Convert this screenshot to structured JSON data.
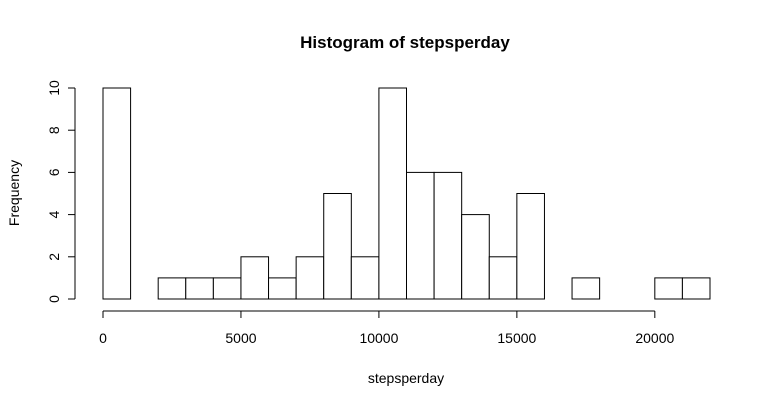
{
  "chart_data": {
    "type": "bar",
    "title": "Histogram of stepsperday",
    "xlabel": "stepsperday",
    "ylabel": "Frequency",
    "bin_width": 1000,
    "bin_starts": [
      0,
      1000,
      2000,
      3000,
      4000,
      5000,
      6000,
      7000,
      8000,
      9000,
      10000,
      11000,
      12000,
      13000,
      14000,
      15000,
      16000,
      17000,
      18000,
      19000,
      20000,
      21000
    ],
    "values": [
      10,
      0,
      1,
      1,
      1,
      2,
      1,
      2,
      5,
      2,
      10,
      6,
      6,
      4,
      2,
      5,
      0,
      1,
      0,
      0,
      1,
      1
    ],
    "xlim": [
      0,
      22000
    ],
    "ylim": [
      0,
      10
    ],
    "x_ticks": [
      0,
      5000,
      10000,
      15000,
      20000
    ],
    "y_ticks": [
      0,
      2,
      4,
      6,
      8,
      10
    ],
    "grid": false,
    "colors": {
      "bar_fill": "#ffffff",
      "bar_stroke": "#000000",
      "text": "#000000"
    }
  }
}
